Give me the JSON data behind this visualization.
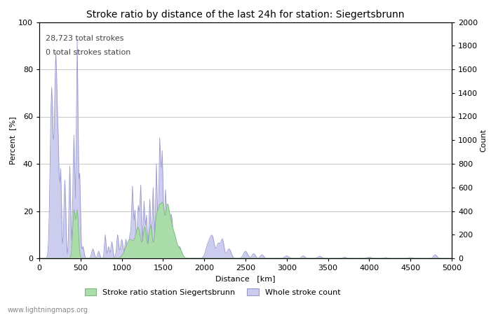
{
  "title": "Stroke ratio by distance of the last 24h for station: Siegertsbrunn",
  "xlabel": "Distance   [km]",
  "ylabel_left": "Percent  [%]",
  "ylabel_right": "Count",
  "annotation_line1": "28,723 total strokes",
  "annotation_line2": "0 total strokes station",
  "xlim": [
    0,
    5000
  ],
  "ylim_left": [
    0,
    100
  ],
  "ylim_right": [
    0,
    2000
  ],
  "xticks": [
    0,
    500,
    1000,
    1500,
    2000,
    2500,
    3000,
    3500,
    4000,
    4500,
    5000
  ],
  "yticks_left": [
    0,
    20,
    40,
    60,
    80,
    100
  ],
  "yticks_right": [
    0,
    200,
    400,
    600,
    800,
    1000,
    1200,
    1400,
    1600,
    1800,
    2000
  ],
  "legend_label_green": "Stroke ratio station Siegertsbrunn",
  "legend_label_blue": "Whole stroke count",
  "line_color": "#9999cc",
  "fill_color_blue": "#ccccee",
  "fill_color_green": "#aaddaa",
  "grid_color": "#bbbbbb",
  "bg_color": "#ffffff",
  "watermark": "www.lightningmaps.org",
  "title_fontsize": 10,
  "label_fontsize": 8,
  "tick_fontsize": 8,
  "annotation_fontsize": 8
}
